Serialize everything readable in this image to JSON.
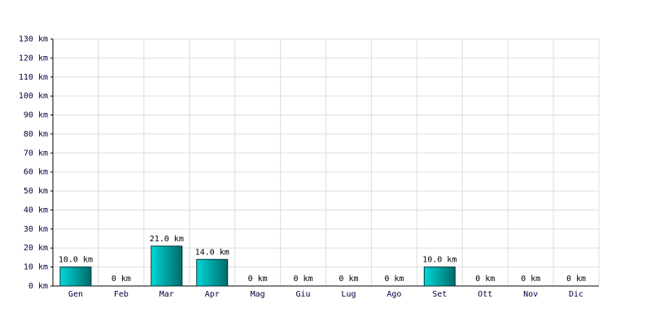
{
  "chart_data": {
    "type": "bar",
    "categories": [
      "Gen",
      "Feb",
      "Mar",
      "Apr",
      "Mag",
      "Giu",
      "Lug",
      "Ago",
      "Set",
      "Ott",
      "Nov",
      "Dic"
    ],
    "values": [
      10,
      0,
      21,
      14,
      0,
      0,
      0,
      0,
      10,
      0,
      0,
      0
    ],
    "value_labels": [
      "10.0 km",
      "0 km",
      "21.0 km",
      "14.0 km",
      "0 km",
      "0 km",
      "0 km",
      "0 km",
      "10.0 km",
      "0 km",
      "0 km",
      "0 km"
    ],
    "color": "#00d8d8",
    "ylim": [
      0,
      130
    ],
    "yticks": [
      {
        "value": 0,
        "label": "0 km"
      },
      {
        "value": 10,
        "label": "10 km"
      },
      {
        "value": 20,
        "label": "20 km"
      },
      {
        "value": 30,
        "label": "30 km"
      },
      {
        "value": 40,
        "label": "40 km"
      },
      {
        "value": 50,
        "label": "50 km"
      },
      {
        "value": 60,
        "label": "60 km"
      },
      {
        "value": 70,
        "label": "70 km"
      },
      {
        "value": 80,
        "label": "80 km"
      },
      {
        "value": 90,
        "label": "90 km"
      },
      {
        "value": 100,
        "label": "100 km"
      },
      {
        "value": 110,
        "label": "110 km"
      },
      {
        "value": 120,
        "label": "120 km"
      },
      {
        "value": 130,
        "label": "130 km"
      }
    ],
    "grid": true
  }
}
